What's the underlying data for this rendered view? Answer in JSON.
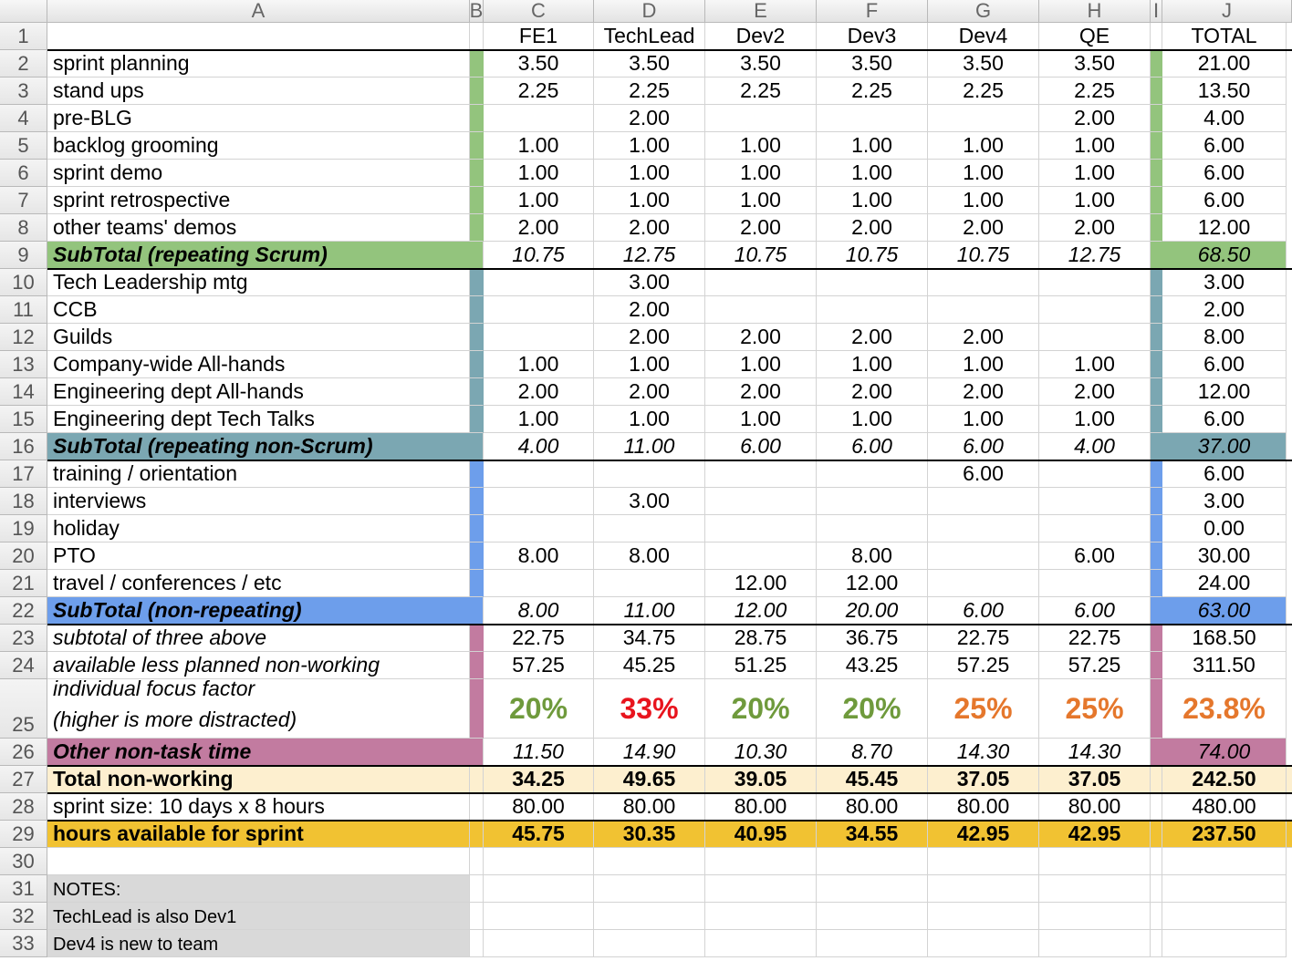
{
  "column_letters": [
    "A",
    "B",
    "C",
    "D",
    "E",
    "F",
    "G",
    "H",
    "I",
    "J"
  ],
  "row_numbers": [
    1,
    2,
    3,
    4,
    5,
    6,
    7,
    8,
    9,
    10,
    11,
    12,
    13,
    14,
    15,
    16,
    17,
    18,
    19,
    20,
    21,
    22,
    23,
    24,
    25,
    26,
    27,
    28,
    29,
    30,
    31,
    32,
    33
  ],
  "headers": [
    "FE1",
    "TechLead",
    "Dev2",
    "Dev3",
    "Dev4",
    "QE",
    "TOTAL"
  ],
  "rows": [
    {
      "label": "sprint planning",
      "values": [
        "3.50",
        "3.50",
        "3.50",
        "3.50",
        "3.50",
        "3.50"
      ],
      "total": "21.00"
    },
    {
      "label": "stand ups",
      "values": [
        "2.25",
        "2.25",
        "2.25",
        "2.25",
        "2.25",
        "2.25"
      ],
      "total": "13.50"
    },
    {
      "label": "pre-BLG",
      "values": [
        null,
        "2.00",
        null,
        null,
        null,
        "2.00"
      ],
      "total": "4.00"
    },
    {
      "label": "backlog grooming",
      "values": [
        "1.00",
        "1.00",
        "1.00",
        "1.00",
        "1.00",
        "1.00"
      ],
      "total": "6.00"
    },
    {
      "label": "sprint demo",
      "values": [
        "1.00",
        "1.00",
        "1.00",
        "1.00",
        "1.00",
        "1.00"
      ],
      "total": "6.00"
    },
    {
      "label": "sprint retrospective",
      "values": [
        "1.00",
        "1.00",
        "1.00",
        "1.00",
        "1.00",
        "1.00"
      ],
      "total": "6.00"
    },
    {
      "label": "other teams' demos",
      "values": [
        "2.00",
        "2.00",
        "2.00",
        "2.00",
        "2.00",
        "2.00"
      ],
      "total": "12.00"
    },
    {
      "label": "SubTotal (repeating Scrum)",
      "values": [
        "10.75",
        "12.75",
        "10.75",
        "10.75",
        "10.75",
        "12.75"
      ],
      "total": "68.50"
    },
    {
      "label": "Tech Leadership mtg",
      "values": [
        null,
        "3.00",
        null,
        null,
        null,
        null
      ],
      "total": "3.00"
    },
    {
      "label": "CCB",
      "values": [
        null,
        "2.00",
        null,
        null,
        null,
        null
      ],
      "total": "2.00"
    },
    {
      "label": "Guilds",
      "values": [
        null,
        "2.00",
        "2.00",
        "2.00",
        "2.00",
        null
      ],
      "total": "8.00"
    },
    {
      "label": "Company-wide All-hands",
      "values": [
        "1.00",
        "1.00",
        "1.00",
        "1.00",
        "1.00",
        "1.00"
      ],
      "total": "6.00"
    },
    {
      "label": "Engineering dept All-hands",
      "values": [
        "2.00",
        "2.00",
        "2.00",
        "2.00",
        "2.00",
        "2.00"
      ],
      "total": "12.00"
    },
    {
      "label": "Engineering dept Tech Talks",
      "values": [
        "1.00",
        "1.00",
        "1.00",
        "1.00",
        "1.00",
        "1.00"
      ],
      "total": "6.00"
    },
    {
      "label": "SubTotal (repeating non-Scrum)",
      "values": [
        "4.00",
        "11.00",
        "6.00",
        "6.00",
        "6.00",
        "4.00"
      ],
      "total": "37.00"
    },
    {
      "label": "training / orientation",
      "values": [
        null,
        null,
        null,
        null,
        "6.00",
        null
      ],
      "total": "6.00"
    },
    {
      "label": "interviews",
      "values": [
        null,
        "3.00",
        null,
        null,
        null,
        null
      ],
      "total": "3.00"
    },
    {
      "label": "holiday",
      "values": [
        null,
        null,
        null,
        null,
        null,
        null
      ],
      "total": "0.00"
    },
    {
      "label": "PTO",
      "values": [
        "8.00",
        "8.00",
        null,
        "8.00",
        null,
        "6.00"
      ],
      "total": "30.00"
    },
    {
      "label": "travel / conferences / etc",
      "values": [
        null,
        null,
        "12.00",
        "12.00",
        null,
        null
      ],
      "total": "24.00"
    },
    {
      "label": "SubTotal (non-repeating)",
      "values": [
        "8.00",
        "11.00",
        "12.00",
        "20.00",
        "6.00",
        "6.00"
      ],
      "total": "63.00"
    },
    {
      "label": "subtotal of three above",
      "values": [
        "22.75",
        "34.75",
        "28.75",
        "36.75",
        "22.75",
        "22.75"
      ],
      "total": "168.50"
    },
    {
      "label": "available less planned non-working",
      "values": [
        "57.25",
        "45.25",
        "51.25",
        "43.25",
        "57.25",
        "57.25"
      ],
      "total": "311.50"
    },
    {
      "label": [
        "individual focus factor",
        "(higher is more distracted)"
      ],
      "values": [
        "20%",
        "33%",
        "20%",
        "20%",
        "25%",
        "25%"
      ],
      "total": "23.8%",
      "value_colors": [
        "#6f9a3c",
        "#e8141d",
        "#6f9a3c",
        "#6f9a3c",
        "#e5772c",
        "#e5772c"
      ],
      "total_color": "#e5772c"
    },
    {
      "label": "Other non-task time",
      "values": [
        "11.50",
        "14.90",
        "10.30",
        "8.70",
        "14.30",
        "14.30"
      ],
      "total": "74.00"
    },
    {
      "label": "Total non-working",
      "values": [
        "34.25",
        "49.65",
        "39.05",
        "45.45",
        "37.05",
        "37.05"
      ],
      "total": "242.50"
    },
    {
      "label": "sprint size: 10 days x 8 hours",
      "values": [
        "80.00",
        "80.00",
        "80.00",
        "80.00",
        "80.00",
        "80.00"
      ],
      "total": "480.00"
    },
    {
      "label": "hours available for sprint",
      "values": [
        "45.75",
        "30.35",
        "40.95",
        "34.55",
        "42.95",
        "42.95"
      ],
      "total": "237.50"
    }
  ],
  "notes": [
    "NOTES:",
    "TechLead is also Dev1",
    "Dev4 is new to team"
  ]
}
